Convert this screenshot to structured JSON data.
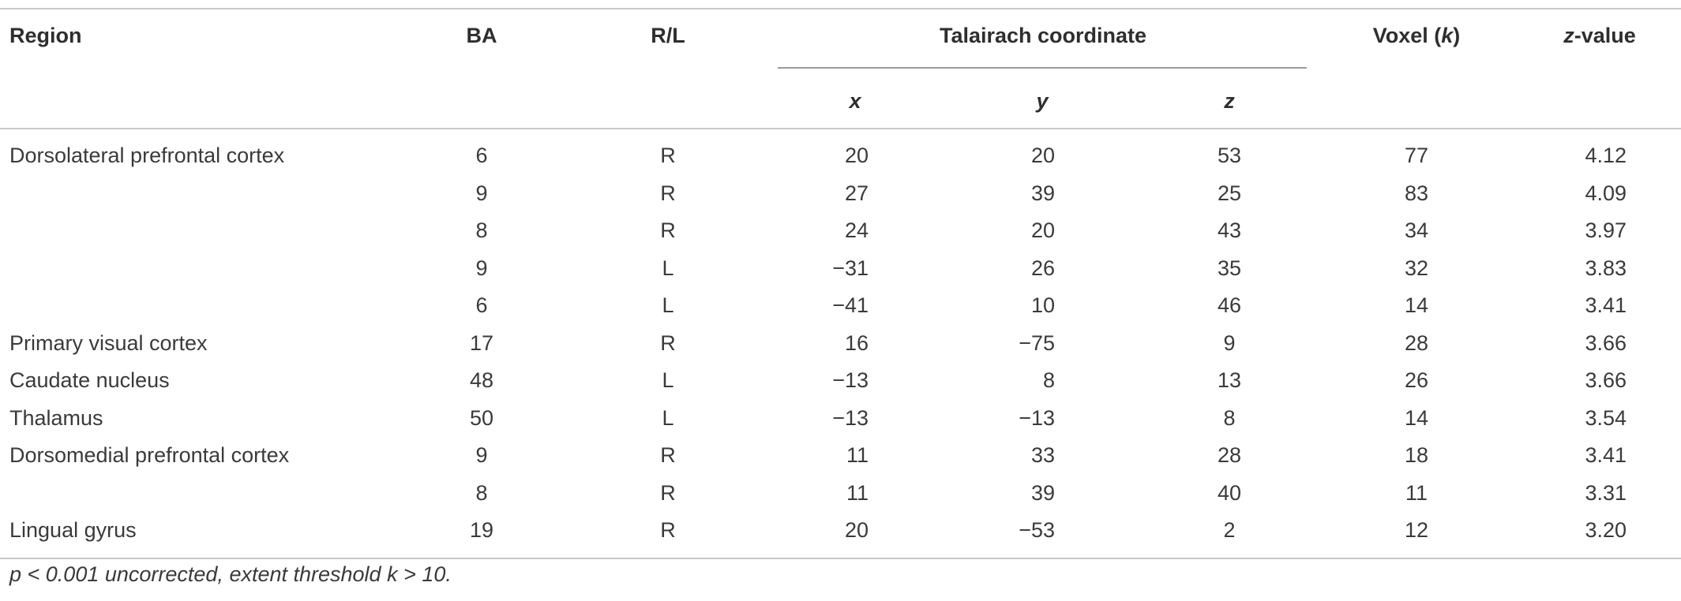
{
  "table": {
    "headers": {
      "region": "Region",
      "ba": "BA",
      "rl": "R/L",
      "talairach": "Talairach coordinate",
      "x": "x",
      "y": "y",
      "z": "z",
      "voxel_prefix": "Voxel (",
      "voxel_k": "k",
      "voxel_suffix": ")",
      "zvalue_italic": "z",
      "zvalue_rest": "-value"
    },
    "rows": [
      {
        "region": "Dorsolateral prefrontal cortex",
        "ba": "6",
        "rl": "R",
        "x": "20",
        "y": "20",
        "z": "53",
        "voxel": "77",
        "zval": "4.12"
      },
      {
        "region": "",
        "ba": "9",
        "rl": "R",
        "x": "27",
        "y": "39",
        "z": "25",
        "voxel": "83",
        "zval": "4.09"
      },
      {
        "region": "",
        "ba": "8",
        "rl": "R",
        "x": "24",
        "y": "20",
        "z": "43",
        "voxel": "34",
        "zval": "3.97"
      },
      {
        "region": "",
        "ba": "9",
        "rl": "L",
        "x": "−31",
        "y": "26",
        "z": "35",
        "voxel": "32",
        "zval": "3.83"
      },
      {
        "region": "",
        "ba": "6",
        "rl": "L",
        "x": "−41",
        "y": "10",
        "z": "46",
        "voxel": "14",
        "zval": "3.41"
      },
      {
        "region": "Primary visual cortex",
        "ba": "17",
        "rl": "R",
        "x": "16",
        "y": "−75",
        "z": "9",
        "voxel": "28",
        "zval": "3.66"
      },
      {
        "region": "Caudate nucleus",
        "ba": "48",
        "rl": "L",
        "x": "−13",
        "y": "8",
        "z": "13",
        "voxel": "26",
        "zval": "3.66"
      },
      {
        "region": "Thalamus",
        "ba": "50",
        "rl": "L",
        "x": "−13",
        "y": "−13",
        "z": "8",
        "voxel": "14",
        "zval": "3.54"
      },
      {
        "region": "Dorsomedial prefrontal cortex",
        "ba": "9",
        "rl": "R",
        "x": "11",
        "y": "33",
        "z": "28",
        "voxel": "18",
        "zval": "3.41"
      },
      {
        "region": "",
        "ba": "8",
        "rl": "R",
        "x": "11",
        "y": "39",
        "z": "40",
        "voxel": "11",
        "zval": "3.31"
      },
      {
        "region": "Lingual gyrus",
        "ba": "19",
        "rl": "R",
        "x": "20",
        "y": "−53",
        "z": "2",
        "voxel": "12",
        "zval": "3.20"
      }
    ],
    "footnote": "p < 0.001 uncorrected, extent threshold k > 10."
  }
}
